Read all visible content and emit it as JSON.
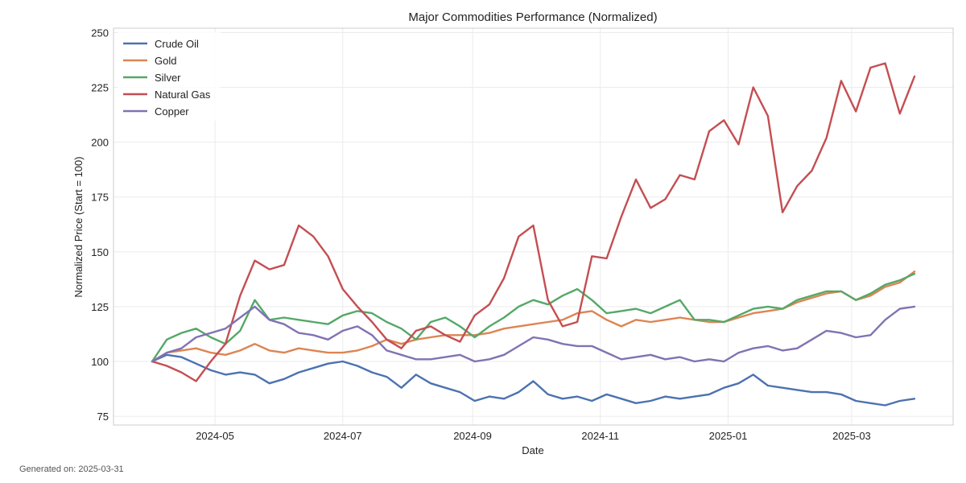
{
  "footer": {
    "prefix": "Generated on:",
    "date": "2025-03-31"
  },
  "chart_data": {
    "type": "line",
    "title": "Major Commodities Performance (Normalized)",
    "xlabel": "Date",
    "ylabel": "Normalized Price (Start = 100)",
    "xlim": [
      "2024-04-01",
      "2025-03-31"
    ],
    "ylim": [
      71,
      252
    ],
    "x_ticks": [
      "2024-05-01",
      "2024-07-01",
      "2024-09-01",
      "2024-11-01",
      "2025-01-01",
      "2025-03-01"
    ],
    "x_tick_labels": [
      "2024-05",
      "2024-07",
      "2024-09",
      "2024-11",
      "2025-01",
      "2025-03"
    ],
    "y_ticks": [
      75,
      100,
      125,
      150,
      175,
      200,
      225,
      250
    ],
    "grid": true,
    "legend": "top-left",
    "x": [
      "2024-04-01",
      "2024-04-08",
      "2024-04-15",
      "2024-04-22",
      "2024-04-29",
      "2024-05-06",
      "2024-05-13",
      "2024-05-20",
      "2024-05-27",
      "2024-06-03",
      "2024-06-10",
      "2024-06-17",
      "2024-06-24",
      "2024-07-01",
      "2024-07-08",
      "2024-07-15",
      "2024-07-22",
      "2024-07-29",
      "2024-08-05",
      "2024-08-12",
      "2024-08-19",
      "2024-08-26",
      "2024-09-02",
      "2024-09-09",
      "2024-09-16",
      "2024-09-23",
      "2024-09-30",
      "2024-10-07",
      "2024-10-14",
      "2024-10-21",
      "2024-10-28",
      "2024-11-04",
      "2024-11-11",
      "2024-11-18",
      "2024-11-25",
      "2024-12-02",
      "2024-12-09",
      "2024-12-16",
      "2024-12-23",
      "2024-12-30",
      "2025-01-06",
      "2025-01-13",
      "2025-01-20",
      "2025-01-27",
      "2025-02-03",
      "2025-02-10",
      "2025-02-17",
      "2025-02-24",
      "2025-03-03",
      "2025-03-10",
      "2025-03-17",
      "2025-03-24",
      "2025-03-31"
    ],
    "series": [
      {
        "name": "Crude Oil",
        "color": "#4c72b0",
        "values": [
          100,
          103,
          102,
          99,
          96,
          94,
          95,
          94,
          90,
          92,
          95,
          97,
          99,
          100,
          98,
          95,
          93,
          88,
          94,
          90,
          88,
          86,
          82,
          84,
          83,
          86,
          91,
          85,
          83,
          84,
          82,
          85,
          83,
          81,
          82,
          84,
          83,
          84,
          85,
          88,
          90,
          94,
          89,
          88,
          87,
          86,
          86,
          85,
          82,
          81,
          80,
          82,
          83
        ]
      },
      {
        "name": "Gold",
        "color": "#dd8452",
        "values": [
          100,
          104,
          105,
          106,
          104,
          103,
          105,
          108,
          105,
          104,
          106,
          105,
          104,
          104,
          105,
          107,
          110,
          108,
          110,
          111,
          112,
          112,
          112,
          113,
          115,
          116,
          117,
          118,
          119,
          122,
          123,
          119,
          116,
          119,
          118,
          119,
          120,
          119,
          118,
          118,
          120,
          122,
          123,
          124,
          127,
          129,
          131,
          132,
          128,
          130,
          134,
          136,
          141
        ]
      },
      {
        "name": "Silver",
        "color": "#55a868",
        "values": [
          100,
          110,
          113,
          115,
          111,
          108,
          114,
          128,
          119,
          120,
          119,
          118,
          117,
          121,
          123,
          122,
          118,
          115,
          110,
          118,
          120,
          116,
          111,
          116,
          120,
          125,
          128,
          126,
          130,
          133,
          128,
          122,
          123,
          124,
          122,
          125,
          128,
          119,
          119,
          118,
          121,
          124,
          125,
          124,
          128,
          130,
          132,
          132,
          128,
          131,
          135,
          137,
          140
        ]
      },
      {
        "name": "Natural Gas",
        "color": "#c44e52",
        "values": [
          100,
          98,
          95,
          91,
          100,
          108,
          130,
          146,
          142,
          144,
          162,
          157,
          148,
          133,
          125,
          118,
          110,
          106,
          114,
          116,
          112,
          109,
          121,
          126,
          138,
          157,
          162,
          128,
          116,
          118,
          148,
          147,
          166,
          183,
          170,
          174,
          185,
          183,
          205,
          210,
          199,
          225,
          212,
          168,
          180,
          187,
          202,
          228,
          214,
          234,
          236,
          213,
          230
        ]
      },
      {
        "name": "Copper",
        "color": "#8172b3",
        "values": [
          100,
          104,
          106,
          111,
          113,
          115,
          120,
          125,
          119,
          117,
          113,
          112,
          110,
          114,
          116,
          112,
          105,
          103,
          101,
          101,
          102,
          103,
          100,
          101,
          103,
          107,
          111,
          110,
          108,
          107,
          107,
          104,
          101,
          102,
          103,
          101,
          102,
          100,
          101,
          100,
          104,
          106,
          107,
          105,
          106,
          110,
          114,
          113,
          111,
          112,
          119,
          124,
          125
        ]
      }
    ]
  }
}
